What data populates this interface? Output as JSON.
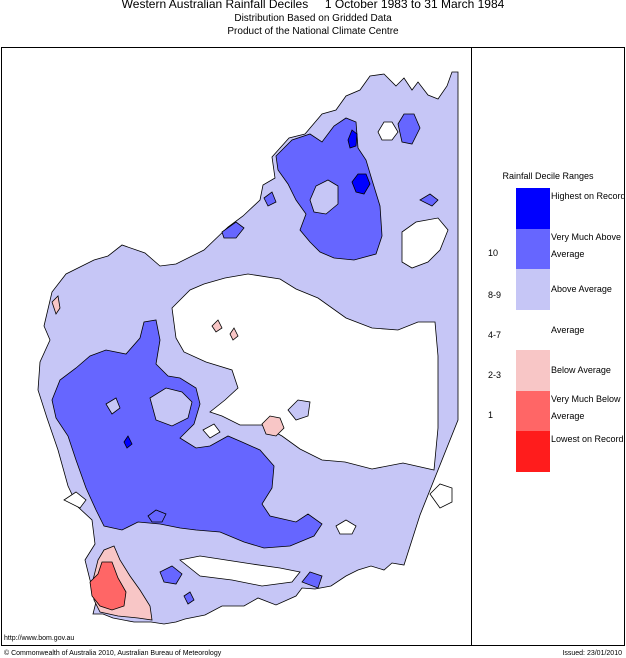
{
  "title": "Western Australian Rainfall Deciles     1 October 1983 to 31 March 1984",
  "subtitle_line1": "Distribution Based on Gridded Data",
  "subtitle_line2": "Product of the National Climate Centre",
  "legend": {
    "title": "Rainfall Decile Ranges",
    "ranges": [
      {
        "label": "Highest on Record",
        "range": "",
        "color": "#0000ff"
      },
      {
        "label": "Very Much Above Average",
        "range": "10",
        "color": "#6666ff"
      },
      {
        "label": "Above Average",
        "range": "8-9",
        "color": "#c6c6f6"
      },
      {
        "label": "Average",
        "range": "4-7",
        "color": "#ffffff"
      },
      {
        "label": "Below Average",
        "range": "2-3",
        "color": "#f8c6c6"
      },
      {
        "label": "Very Much Below Average",
        "range": "1",
        "color": "#ff6666"
      },
      {
        "label": "Lowest on Record",
        "range": "",
        "color": "#ff1c1c"
      }
    ]
  },
  "footer": {
    "url": "http://www.bom.gov.au",
    "copyright": "© Commonwealth of Australia 2010, Australian Bureau of Meteorology",
    "issued": "Issued: 23/01/2010"
  }
}
